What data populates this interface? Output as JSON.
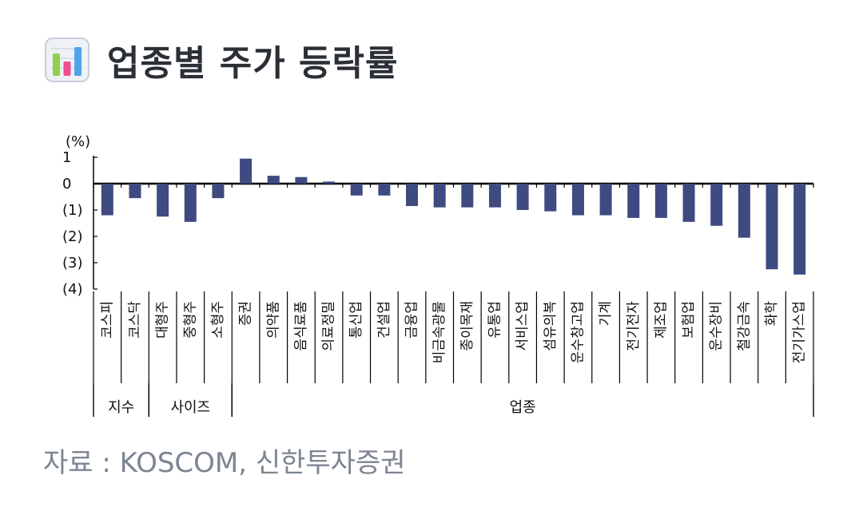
{
  "header": {
    "title": "업종별 주가 등락률",
    "icon": "bar-chart-icon"
  },
  "source": "자료 : KOSCOM, 신한투자증권",
  "colors": {
    "bar": "#3f4a80",
    "title": "#2b2f36",
    "source": "#7c8591"
  },
  "chart_data": {
    "type": "bar",
    "unit_label": "(%)",
    "yticks": [
      "1",
      "0",
      "(1)",
      "(2)",
      "(3)",
      "(4)"
    ],
    "ylim": [
      -4,
      1
    ],
    "categories": [
      "코스피",
      "코스닥",
      "대형주",
      "중형주",
      "소형주",
      "증권",
      "의약품",
      "음식료품",
      "의료정밀",
      "통신업",
      "건설업",
      "금융업",
      "비금속광물",
      "종이목재",
      "유통업",
      "서비스업",
      "섬유의복",
      "운수창고업",
      "기계",
      "전기전자",
      "제조업",
      "보험업",
      "운수장비",
      "철강금속",
      "화학",
      "전기가스업"
    ],
    "values": [
      -1.2,
      -0.55,
      -1.25,
      -1.45,
      -0.55,
      0.95,
      0.3,
      0.25,
      0.08,
      -0.45,
      -0.45,
      -0.85,
      -0.9,
      -0.9,
      -0.9,
      -1.0,
      -1.05,
      -1.2,
      -1.2,
      -1.3,
      -1.3,
      -1.45,
      -1.6,
      -2.05,
      -3.25,
      -3.45
    ],
    "groups": [
      {
        "label": "지수",
        "start": 0,
        "end": 1
      },
      {
        "label": "사이즈",
        "start": 2,
        "end": 4
      },
      {
        "label": "업종",
        "start": 5,
        "end": 25
      }
    ]
  }
}
